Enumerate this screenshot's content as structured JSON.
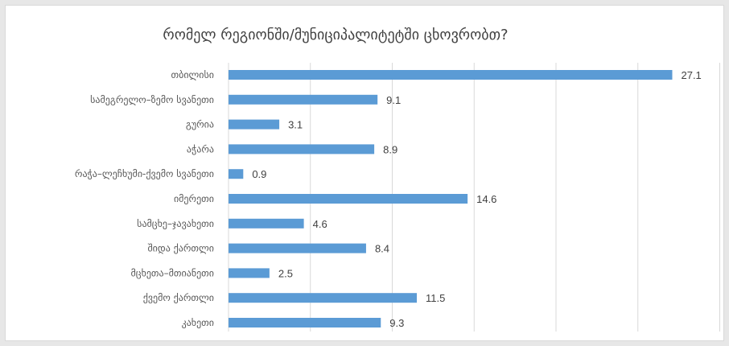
{
  "chart_data": {
    "type": "bar",
    "orientation": "horizontal",
    "title": "რომელ რეგიონში/მუნიციპალიტეტში ცხოვრობთ?",
    "categories": [
      "თბილისი",
      "სამეგრელო–ზემო სვანეთი",
      "გურია",
      "აჭარა",
      "რაჭა–ლეჩხუმი-ქვემო სვანეთი",
      "იმერეთი",
      "სამცხე–ჯავახეთი",
      "შიდა ქართლი",
      "მცხეთა–მთიანეთი",
      "ქვემო ქართლი",
      "კახეთი"
    ],
    "values": [
      27.1,
      9.1,
      3.1,
      8.9,
      0.9,
      14.6,
      4.6,
      8.4,
      2.5,
      11.5,
      9.3
    ],
    "value_labels": [
      "27.1",
      "9.1",
      "3.1",
      "8.9",
      "0.9",
      "14.6",
      "4.6",
      "8.4",
      "2.5",
      "11.5",
      "9.3"
    ],
    "xlim": [
      0,
      30
    ],
    "x_gridlines": [
      0,
      5,
      10,
      15,
      20,
      25,
      30
    ],
    "grid": true,
    "legend": "none",
    "bar_color": "#5b9bd5",
    "gridline_color": "#d9d9d9"
  }
}
